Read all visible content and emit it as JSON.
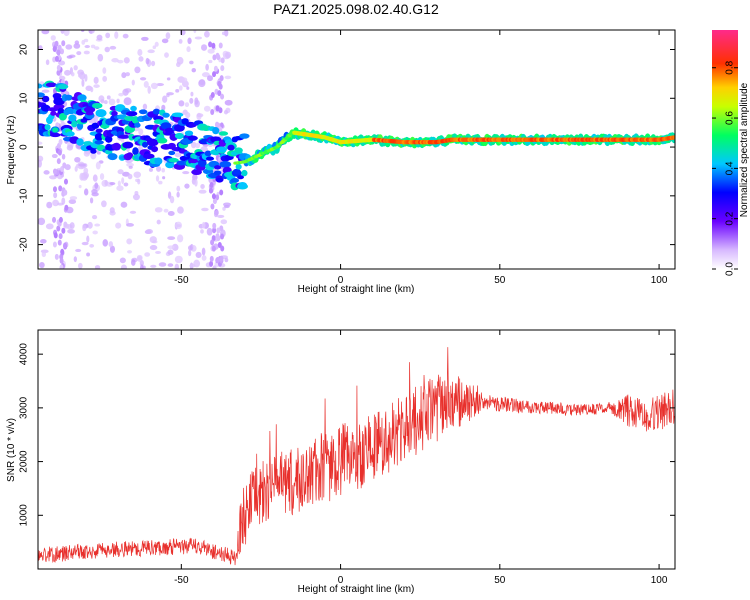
{
  "title": "PAZ1.2025.098.02.40.G12",
  "chart_data": [
    {
      "type": "heatmap",
      "xlabel": "Height of straight line (km)",
      "ylabel": "Frequency (Hz)",
      "xlim": [
        -95,
        105
      ],
      "ylim": [
        -25,
        24
      ],
      "xticks": [
        -50,
        0,
        50,
        100
      ],
      "yticks": [
        -20,
        -10,
        0,
        10,
        20
      ],
      "colorbar": {
        "label": "Normalized spectral amplitude",
        "range": [
          0,
          0.95
        ],
        "ticks": [
          0.0,
          0.2,
          0.4,
          0.6,
          0.8
        ]
      },
      "ridge": {
        "x": [
          -90,
          -80,
          -70,
          -60,
          -50,
          -40,
          -35,
          -30,
          -25,
          -20,
          -15,
          -10,
          -5,
          0,
          10,
          20,
          30,
          35,
          40,
          50,
          60,
          70,
          80,
          90,
          100,
          105
        ],
        "y": [
          8,
          5,
          3,
          2,
          1,
          -1,
          -3.5,
          -3,
          -1.5,
          0,
          3,
          2.5,
          2,
          1,
          1.5,
          1,
          1,
          1.5,
          1.5,
          1.5,
          1.5,
          1.5,
          1.5,
          1.5,
          1.5,
          2
        ]
      }
    },
    {
      "type": "line",
      "xlabel": "Height of straight line (km)",
      "ylabel": "SNR (10 * v/v)",
      "xlim": [
        -95,
        105
      ],
      "ylim": [
        0,
        4450
      ],
      "xticks": [
        -50,
        0,
        50,
        100
      ],
      "yticks": [
        1000,
        2000,
        3000,
        4000
      ],
      "color": "#e8302c",
      "envelope": {
        "x": [
          -95,
          -70,
          -45,
          -33,
          -31,
          -25,
          -15,
          -5,
          5,
          15,
          20,
          25,
          30,
          35,
          38,
          45,
          55,
          65,
          75,
          85,
          90,
          95,
          100,
          105
        ],
        "y": [
          250,
          370,
          430,
          200,
          950,
          1450,
          1600,
          1900,
          2100,
          2450,
          2600,
          2800,
          3000,
          3050,
          3100,
          3100,
          3050,
          3000,
          2950,
          3000,
          2950,
          2850,
          2900,
          3050
        ]
      },
      "noise_amplitude": {
        "x": [
          -95,
          -33,
          -31,
          0,
          30,
          38,
          45,
          85,
          90,
          105
        ],
        "y": [
          150,
          150,
          600,
          700,
          650,
          500,
          150,
          100,
          300,
          350
        ]
      }
    }
  ]
}
